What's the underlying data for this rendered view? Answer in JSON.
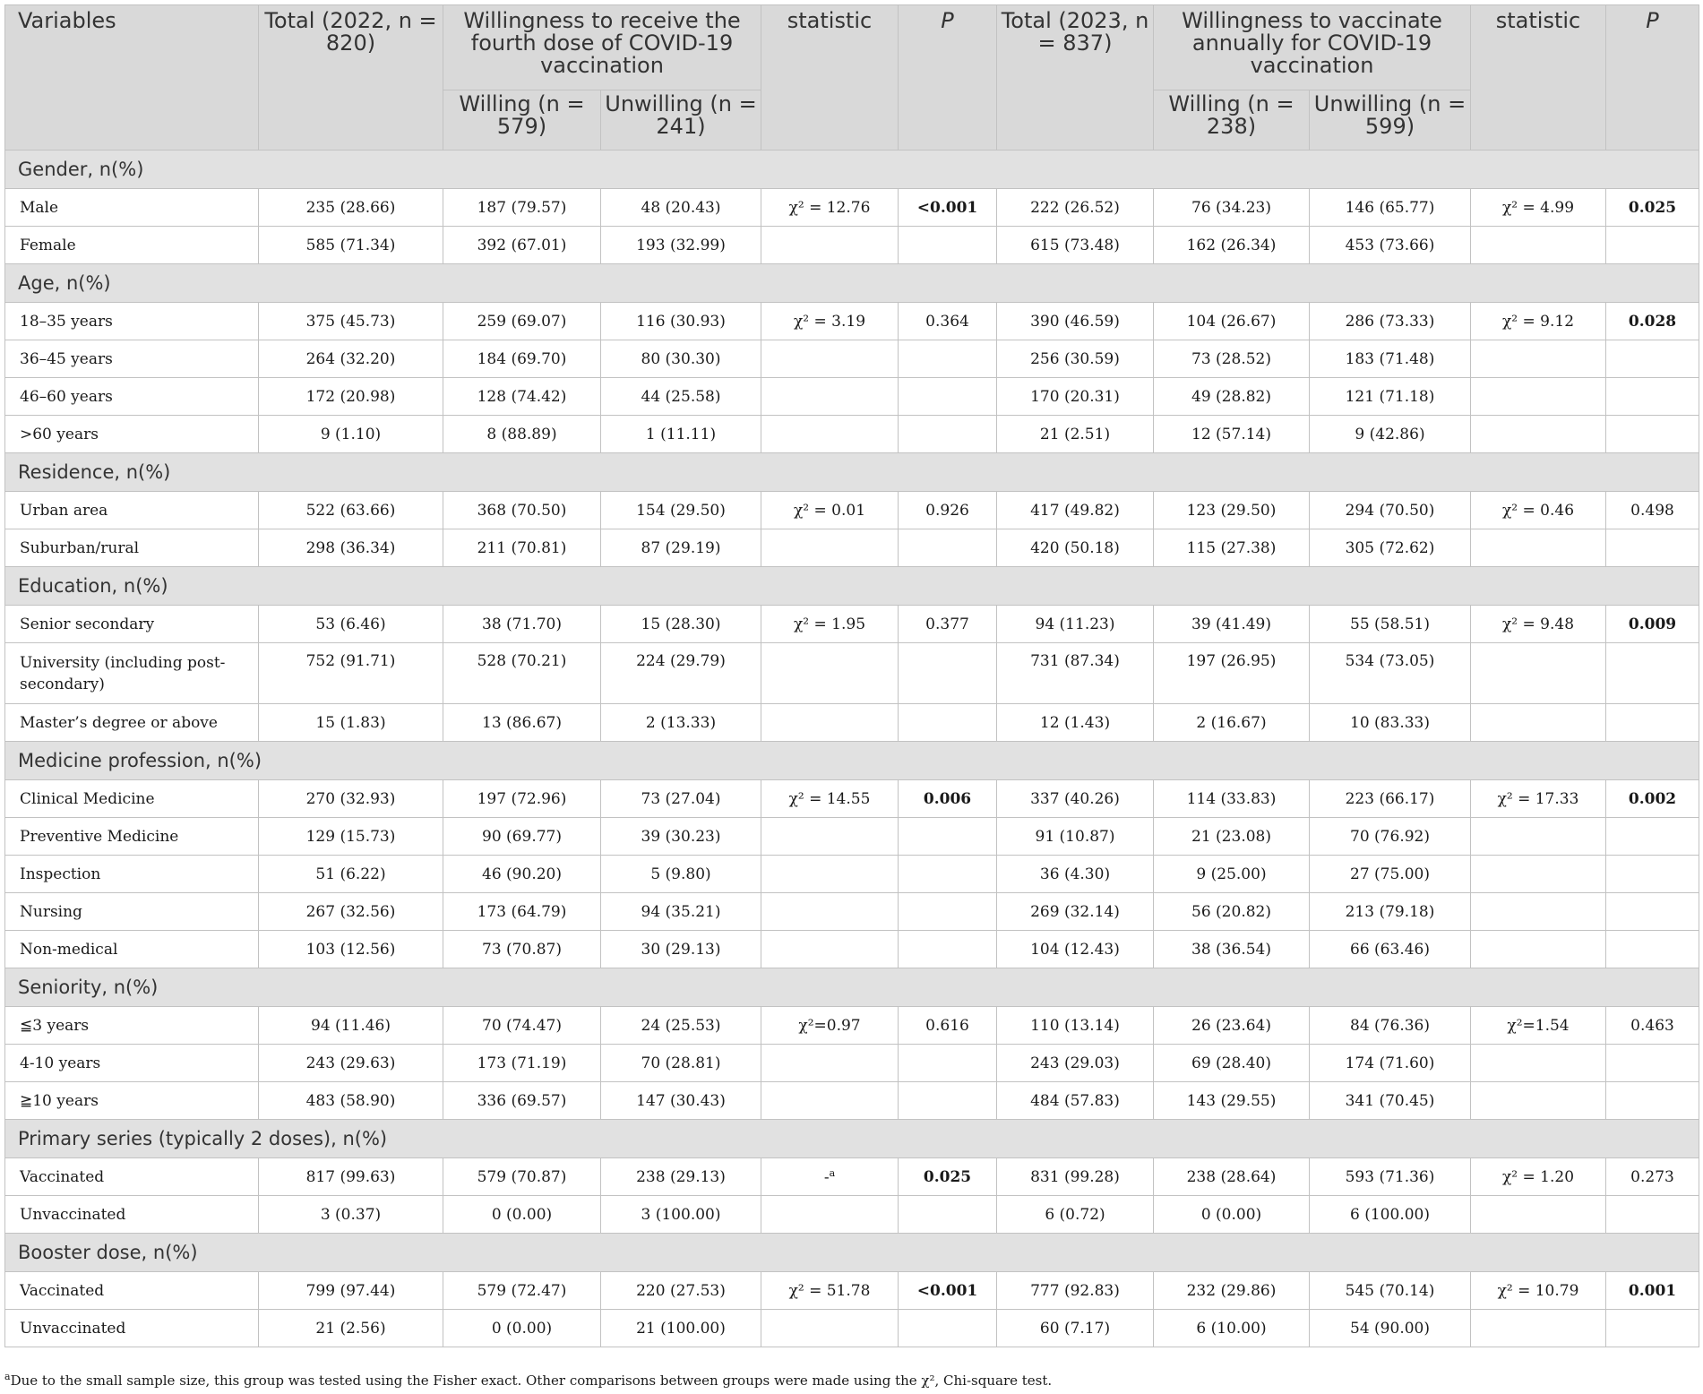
{
  "header": {
    "variables": "Variables",
    "total_2022": "Total (2022, n = 820)",
    "group_2022": "Willingness to receive the fourth dose of COVID-19 vaccination",
    "willing_2022": "Willing (n = 579)",
    "unwilling_2022": "Unwilling (n = 241)",
    "statistic_1": "statistic",
    "p_1": "P",
    "total_2023": "Total (2023, n = 837)",
    "group_2023": "Willingness to vaccinate annually for COVID-19 vaccination",
    "willing_2023": "Willing (n = 238)",
    "unwilling_2023": "Unwilling (n = 599)",
    "statistic_2": "statistic",
    "p_2": "P"
  },
  "sections": [
    {
      "title": "Gender, n(%)",
      "rows": [
        {
          "label": "Male",
          "total_2022": "235 (28.66)",
          "willing_2022": "187 (79.57)",
          "unwilling_2022": "48 (20.43)",
          "stat_2022": "χ² = 12.76",
          "p_2022": "<0.001",
          "p_2022_bold": true,
          "total_2023": "222 (26.52)",
          "willing_2023": "76 (34.23)",
          "unwilling_2023": "146 (65.77)",
          "stat_2023": "χ² = 4.99",
          "p_2023": "0.025",
          "p_2023_bold": true
        },
        {
          "label": "Female",
          "total_2022": "585 (71.34)",
          "willing_2022": "392 (67.01)",
          "unwilling_2022": "193 (32.99)",
          "stat_2022": "",
          "p_2022": "",
          "total_2023": "615 (73.48)",
          "willing_2023": "162 (26.34)",
          "unwilling_2023": "453 (73.66)",
          "stat_2023": "",
          "p_2023": ""
        }
      ]
    },
    {
      "title": "Age, n(%)",
      "rows": [
        {
          "label": "18–35 years",
          "total_2022": "375 (45.73)",
          "willing_2022": "259 (69.07)",
          "unwilling_2022": "116 (30.93)",
          "stat_2022": "χ² = 3.19",
          "p_2022": "0.364",
          "total_2023": "390 (46.59)",
          "willing_2023": "104 (26.67)",
          "unwilling_2023": "286 (73.33)",
          "stat_2023": "χ² = 9.12",
          "p_2023": "0.028",
          "p_2023_bold": true
        },
        {
          "label": "36–45 years",
          "total_2022": "264 (32.20)",
          "willing_2022": "184 (69.70)",
          "unwilling_2022": "80 (30.30)",
          "stat_2022": "",
          "p_2022": "",
          "total_2023": "256 (30.59)",
          "willing_2023": "73 (28.52)",
          "unwilling_2023": "183 (71.48)",
          "stat_2023": "",
          "p_2023": ""
        },
        {
          "label": "46–60 years",
          "total_2022": "172 (20.98)",
          "willing_2022": "128 (74.42)",
          "unwilling_2022": "44 (25.58)",
          "stat_2022": "",
          "p_2022": "",
          "total_2023": "170 (20.31)",
          "willing_2023": "49 (28.82)",
          "unwilling_2023": "121 (71.18)",
          "stat_2023": "",
          "p_2023": ""
        },
        {
          "label": ">60 years",
          "total_2022": "9 (1.10)",
          "willing_2022": "8 (88.89)",
          "unwilling_2022": "1 (11.11)",
          "stat_2022": "",
          "p_2022": "",
          "total_2023": "21 (2.51)",
          "willing_2023": "12 (57.14)",
          "unwilling_2023": "9 (42.86)",
          "stat_2023": "",
          "p_2023": ""
        }
      ]
    },
    {
      "title": "Residence, n(%)",
      "rows": [
        {
          "label": "Urban area",
          "total_2022": "522 (63.66)",
          "willing_2022": "368 (70.50)",
          "unwilling_2022": "154 (29.50)",
          "stat_2022": "χ² = 0.01",
          "p_2022": "0.926",
          "total_2023": "417 (49.82)",
          "willing_2023": "123 (29.50)",
          "unwilling_2023": "294 (70.50)",
          "stat_2023": "χ² = 0.46",
          "p_2023": "0.498"
        },
        {
          "label": "Suburban/rural",
          "total_2022": "298 (36.34)",
          "willing_2022": "211 (70.81)",
          "unwilling_2022": "87 (29.19)",
          "stat_2022": "",
          "p_2022": "",
          "total_2023": "420 (50.18)",
          "willing_2023": "115 (27.38)",
          "unwilling_2023": "305 (72.62)",
          "stat_2023": "",
          "p_2023": ""
        }
      ]
    },
    {
      "title": "Education, n(%)",
      "rows": [
        {
          "label": "Senior secondary",
          "total_2022": "53 (6.46)",
          "willing_2022": "38 (71.70)",
          "unwilling_2022": "15 (28.30)",
          "stat_2022": "χ² = 1.95",
          "p_2022": "0.377",
          "total_2023": "94 (11.23)",
          "willing_2023": "39 (41.49)",
          "unwilling_2023": "55 (58.51)",
          "stat_2023": "χ² = 9.48",
          "p_2023": "0.009",
          "p_2023_bold": true
        },
        {
          "label": "University (including post-secondary)",
          "tall": true,
          "total_2022": "752 (91.71)",
          "willing_2022": "528 (70.21)",
          "unwilling_2022": "224 (29.79)",
          "stat_2022": "",
          "p_2022": "",
          "total_2023": "731 (87.34)",
          "willing_2023": "197 (26.95)",
          "unwilling_2023": "534 (73.05)",
          "stat_2023": "",
          "p_2023": ""
        },
        {
          "label": "Master’s degree or above",
          "total_2022": "15 (1.83)",
          "willing_2022": "13 (86.67)",
          "unwilling_2022": "2 (13.33)",
          "stat_2022": "",
          "p_2022": "",
          "total_2023": "12 (1.43)",
          "willing_2023": "2 (16.67)",
          "unwilling_2023": "10 (83.33)",
          "stat_2023": "",
          "p_2023": ""
        }
      ]
    },
    {
      "title": "Medicine profession, n(%)",
      "rows": [
        {
          "label": "Clinical Medicine",
          "total_2022": "270 (32.93)",
          "willing_2022": "197 (72.96)",
          "unwilling_2022": "73 (27.04)",
          "stat_2022": "χ² = 14.55",
          "p_2022": "0.006",
          "p_2022_bold": true,
          "total_2023": "337 (40.26)",
          "willing_2023": "114 (33.83)",
          "unwilling_2023": "223 (66.17)",
          "stat_2023": "χ² = 17.33",
          "p_2023": "0.002",
          "p_2023_bold": true
        },
        {
          "label": "Preventive Medicine",
          "total_2022": "129 (15.73)",
          "willing_2022": "90 (69.77)",
          "unwilling_2022": "39 (30.23)",
          "stat_2022": "",
          "p_2022": "",
          "total_2023": "91 (10.87)",
          "willing_2023": "21 (23.08)",
          "unwilling_2023": "70 (76.92)",
          "stat_2023": "",
          "p_2023": ""
        },
        {
          "label": "Inspection",
          "total_2022": "51 (6.22)",
          "willing_2022": "46 (90.20)",
          "unwilling_2022": "5 (9.80)",
          "stat_2022": "",
          "p_2022": "",
          "total_2023": "36 (4.30)",
          "willing_2023": "9 (25.00)",
          "unwilling_2023": "27 (75.00)",
          "stat_2023": "",
          "p_2023": ""
        },
        {
          "label": "Nursing",
          "total_2022": "267 (32.56)",
          "willing_2022": "173 (64.79)",
          "unwilling_2022": "94 (35.21)",
          "stat_2022": "",
          "p_2022": "",
          "total_2023": "269 (32.14)",
          "willing_2023": "56 (20.82)",
          "unwilling_2023": "213 (79.18)",
          "stat_2023": "",
          "p_2023": ""
        },
        {
          "label": "Non-medical",
          "total_2022": "103 (12.56)",
          "willing_2022": "73 (70.87)",
          "unwilling_2022": "30 (29.13)",
          "stat_2022": "",
          "p_2022": "",
          "total_2023": "104 (12.43)",
          "willing_2023": "38 (36.54)",
          "unwilling_2023": "66 (63.46)",
          "stat_2023": "",
          "p_2023": ""
        }
      ]
    },
    {
      "title": "Seniority, n(%)",
      "rows": [
        {
          "label": "≦3 years",
          "total_2022": "94 (11.46)",
          "willing_2022": "70 (74.47)",
          "unwilling_2022": "24 (25.53)",
          "stat_2022": "χ²=0.97",
          "p_2022": "0.616",
          "total_2023": "110 (13.14)",
          "willing_2023": "26 (23.64)",
          "unwilling_2023": "84 (76.36)",
          "stat_2023": "χ²=1.54",
          "p_2023": "0.463"
        },
        {
          "label": "4-10 years",
          "total_2022": "243 (29.63)",
          "willing_2022": "173 (71.19)",
          "unwilling_2022": "70 (28.81)",
          "stat_2022": "",
          "p_2022": "",
          "total_2023": "243 (29.03)",
          "willing_2023": "69 (28.40)",
          "unwilling_2023": "174 (71.60)",
          "stat_2023": "",
          "p_2023": ""
        },
        {
          "label": "≧10 years",
          "total_2022": "483 (58.90)",
          "willing_2022": "336 (69.57)",
          "unwilling_2022": "147 (30.43)",
          "stat_2022": "",
          "p_2022": "",
          "total_2023": "484 (57.83)",
          "willing_2023": "143 (29.55)",
          "unwilling_2023": "341 (70.45)",
          "stat_2023": "",
          "p_2023": ""
        }
      ]
    },
    {
      "title": "Primary series (typically 2 doses), n(%)",
      "rows": [
        {
          "label": "Vaccinated",
          "total_2022": "817 (99.63)",
          "willing_2022": "579 (70.87)",
          "unwilling_2022": "238 (29.13)",
          "stat_2022": "-",
          "stat_2022_sup": "a",
          "p_2022": "0.025",
          "p_2022_bold": true,
          "total_2023": "831 (99.28)",
          "willing_2023": "238 (28.64)",
          "unwilling_2023": "593 (71.36)",
          "stat_2023": "χ² = 1.20",
          "p_2023": "0.273"
        },
        {
          "label": "Unvaccinated",
          "total_2022": "3 (0.37)",
          "willing_2022": "0 (0.00)",
          "unwilling_2022": "3 (100.00)",
          "stat_2022": "",
          "p_2022": "",
          "total_2023": "6 (0.72)",
          "willing_2023": "0 (0.00)",
          "unwilling_2023": "6 (100.00)",
          "stat_2023": "",
          "p_2023": ""
        }
      ]
    },
    {
      "title": "Booster dose, n(%)",
      "rows": [
        {
          "label": "Vaccinated",
          "total_2022": "799 (97.44)",
          "willing_2022": "579 (72.47)",
          "unwilling_2022": "220 (27.53)",
          "stat_2022": "χ² = 51.78",
          "p_2022": "<0.001",
          "p_2022_bold": true,
          "total_2023": "777 (92.83)",
          "willing_2023": "232 (29.86)",
          "unwilling_2023": "545 (70.14)",
          "stat_2023": "χ² = 10.79",
          "p_2023": "0.001",
          "p_2023_bold": true
        },
        {
          "label": "Unvaccinated",
          "total_2022": "21 (2.56)",
          "willing_2022": "0 (0.00)",
          "unwilling_2022": "21 (100.00)",
          "stat_2022": "",
          "p_2022": "",
          "total_2023": "60 (7.17)",
          "willing_2023": "6 (10.00)",
          "unwilling_2023": "54 (90.00)",
          "stat_2023": "",
          "p_2023": ""
        }
      ]
    }
  ],
  "footnote": {
    "marker": "a",
    "text": "Due to the small sample size, this group was tested using the Fisher exact. Other comparisons between groups were made using the χ², Chi-square test."
  }
}
